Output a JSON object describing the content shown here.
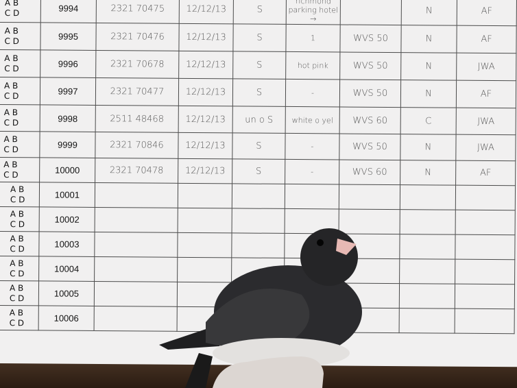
{
  "sheet": {
    "rows": [
      {
        "abcd": [
          "A B",
          "C D"
        ],
        "number": "9994",
        "band": "2321 70475",
        "date": "12/12/13",
        "col3": "S",
        "col4": "richmond parking hotel →",
        "col5": "",
        "col6": "N",
        "col7": "AF"
      },
      {
        "abcd": [
          "A B",
          "C D"
        ],
        "number": "9995",
        "band": "2321 70476",
        "date": "12/12/13",
        "col3": "S",
        "col4": "1",
        "col5": "WVS 50",
        "col6": "N",
        "col7": "AF"
      },
      {
        "abcd": [
          "A B",
          "C D"
        ],
        "number": "9996",
        "band": "2321 70678",
        "date": "12/12/13",
        "col3": "S",
        "col4": "hot pink",
        "col5": "WVS 50",
        "col6": "N",
        "col7": "JWA"
      },
      {
        "abcd": [
          "A B",
          "C D"
        ],
        "number": "9997",
        "band": "2321 70477",
        "date": "12/12/13",
        "col3": "S",
        "col4": "-",
        "col5": "WVS 50",
        "col6": "N",
        "col7": "AF"
      },
      {
        "abcd": [
          "A B",
          "C D"
        ],
        "number": "9998",
        "band": "2511 48468",
        "date": "12/12/13",
        "col3": "un o S",
        "col4": "white o yel",
        "col5": "WVS 60",
        "col6": "C",
        "col7": "JWA"
      },
      {
        "abcd": [
          "A B",
          "C D"
        ],
        "number": "9999",
        "band": "2321 70846",
        "date": "12/12/13",
        "col3": "S",
        "col4": "-",
        "col5": "WVS 50",
        "col6": "N",
        "col7": "JWA"
      },
      {
        "abcd": [
          "A B",
          "C D"
        ],
        "number": "10000",
        "band": "2321 70478",
        "date": "12/12/13",
        "col3": "S",
        "col4": "-",
        "col5": "WVS 60",
        "col6": "N",
        "col7": "AF"
      },
      {
        "abcd": [
          "A B",
          "C D"
        ],
        "number": "10001"
      },
      {
        "abcd": [
          "A B",
          "C D"
        ],
        "number": "10002"
      },
      {
        "abcd": [
          "A B",
          "C D"
        ],
        "number": "10003"
      },
      {
        "abcd": [
          "A B",
          "C D"
        ],
        "number": "10004"
      },
      {
        "abcd": [
          "A B",
          "C D"
        ],
        "number": "10005"
      },
      {
        "abcd": [
          "A B",
          "C D"
        ],
        "number": "10006"
      }
    ]
  },
  "subject": {
    "description_icon": "dark-eyed-junco-bird"
  }
}
